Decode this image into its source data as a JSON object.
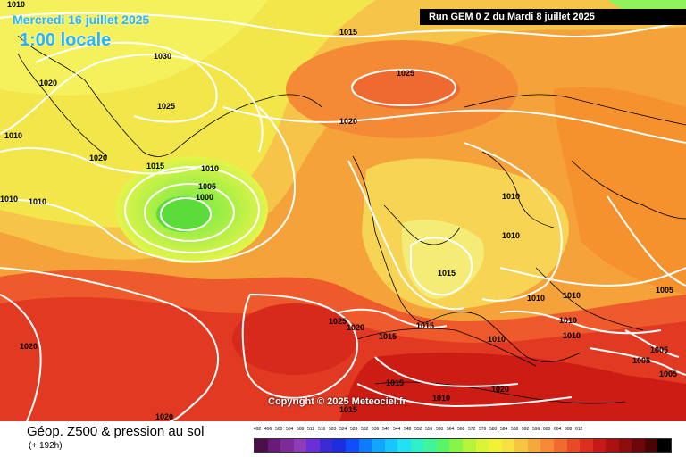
{
  "header": {
    "date": "Mercredi 16 juillet 2025",
    "local_time": "1:00 locale",
    "run_info": "Run GEM 0 Z du Mardi 8 juillet 2025"
  },
  "copyright": "Copyright © 2025 Meteociel.fr",
  "isobar_labels": [
    {
      "id": "a",
      "text": "1010"
    },
    {
      "id": "b",
      "text": "1030"
    },
    {
      "id": "c",
      "text": "1020"
    },
    {
      "id": "d",
      "text": "1025"
    },
    {
      "id": "e",
      "text": "1010"
    },
    {
      "id": "f",
      "text": "1020"
    },
    {
      "id": "g",
      "text": "1015"
    },
    {
      "id": "h",
      "text": "1010"
    },
    {
      "id": "i",
      "text": "1005"
    },
    {
      "id": "j",
      "text": "1000"
    },
    {
      "id": "k",
      "text": "1010"
    },
    {
      "id": "l",
      "text": "1010"
    },
    {
      "id": "m",
      "text": "1015"
    },
    {
      "id": "n",
      "text": "1025"
    },
    {
      "id": "o",
      "text": "1020"
    },
    {
      "id": "p",
      "text": "1010"
    },
    {
      "id": "q",
      "text": "1010"
    },
    {
      "id": "r",
      "text": "1015"
    },
    {
      "id": "s",
      "text": "1010"
    },
    {
      "id": "t",
      "text": "1010"
    },
    {
      "id": "u",
      "text": "1010"
    },
    {
      "id": "v",
      "text": "1005"
    },
    {
      "id": "w",
      "text": "1020"
    },
    {
      "id": "x",
      "text": "1025"
    },
    {
      "id": "y",
      "text": "1020"
    },
    {
      "id": "z",
      "text": "1015"
    },
    {
      "id": "aa",
      "text": "1015"
    },
    {
      "id": "ab",
      "text": "1010"
    },
    {
      "id": "ac",
      "text": "1010"
    },
    {
      "id": "ad",
      "text": "1015"
    },
    {
      "id": "ae",
      "text": "1015"
    },
    {
      "id": "af",
      "text": "1010"
    },
    {
      "id": "ag",
      "text": "1005"
    },
    {
      "id": "ah",
      "text": "1005"
    },
    {
      "id": "ai",
      "text": "1005"
    },
    {
      "id": "aj",
      "text": "1020"
    },
    {
      "id": "ak",
      "text": "1020"
    }
  ],
  "footer": {
    "title": "Géop. Z500 & pression au sol",
    "subtitle": "(+ 192h)"
  },
  "legend": {
    "values": [
      "492",
      "496",
      "500",
      "504",
      "508",
      "512",
      "516",
      "520",
      "524",
      "528",
      "532",
      "536",
      "540",
      "544",
      "548",
      "552",
      "556",
      "560",
      "564",
      "568",
      "572",
      "576",
      "580",
      "584",
      "588",
      "592",
      "596",
      "600",
      "604",
      "608",
      "612"
    ],
    "colors": [
      "#4b0f4b",
      "#6a1a78",
      "#7e2a99",
      "#8e3cb8",
      "#6a2fd6",
      "#3b2bd4",
      "#1d2ee0",
      "#0f4dff",
      "#0f7bff",
      "#10a6ff",
      "#16c8ff",
      "#21e2f0",
      "#2ef0c8",
      "#3ef59a",
      "#58f56a",
      "#86f548",
      "#b4f53a",
      "#d9f536",
      "#f2f233",
      "#f7e040",
      "#f7c640",
      "#f7a83c",
      "#f78a36",
      "#f26a2e",
      "#e84a26",
      "#dc2e1e",
      "#c81818",
      "#ad1010",
      "#8e0c0c",
      "#6e0808",
      "#4a0404"
    ],
    "extra_color": "#000000"
  }
}
